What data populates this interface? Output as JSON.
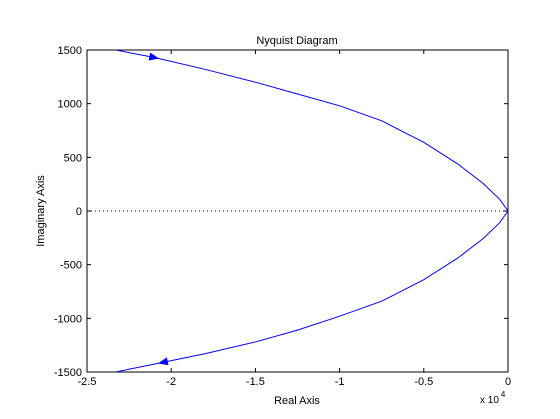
{
  "chart_data": {
    "type": "line",
    "title": "Nyquist Diagram",
    "xlabel": "Real Axis",
    "ylabel": "Imaginary Axis",
    "xlim": [
      -2.5,
      0
    ],
    "ylim": [
      -1500,
      1500
    ],
    "x_multiplier_base": "x 10",
    "x_multiplier_exponent": "4",
    "x_ticks": [
      -2.5,
      -2,
      -1.5,
      -1,
      -0.5,
      0
    ],
    "x_tick_labels": [
      "-2.5",
      "-2",
      "-1.5",
      "-1",
      "-0.5",
      "0"
    ],
    "y_ticks": [
      -1500,
      -1000,
      -500,
      0,
      500,
      1000,
      1500
    ],
    "y_tick_labels": [
      "-1500",
      "-1000",
      "-500",
      "0",
      "500",
      "1000",
      "1500"
    ],
    "grid": false,
    "zero_line": "dotted",
    "colors": {
      "curve": "#0000ff",
      "axes": "#000000",
      "zero_line": "#000000"
    },
    "series": [
      {
        "values_x": [
          -2.33,
          -2.1,
          -1.8,
          -1.5,
          -1.25,
          -1.0,
          -0.75,
          -0.5,
          -0.3,
          -0.15,
          -0.05,
          0.0
        ],
        "values_y": [
          1500,
          1430,
          1320,
          1200,
          1090,
          980,
          840,
          640,
          440,
          260,
          110,
          0
        ],
        "arrow_at": [
          -2.1,
          1430
        ]
      },
      {
        "values_x": [
          0.0,
          -0.05,
          -0.15,
          -0.3,
          -0.5,
          -0.75,
          -1.0,
          -1.25,
          -1.5,
          -1.8,
          -2.05,
          -2.33
        ],
        "values_y": [
          0,
          -110,
          -260,
          -440,
          -640,
          -840,
          -980,
          -1110,
          -1220,
          -1330,
          -1410,
          -1500
        ],
        "arrow_at": [
          -2.05,
          -1410
        ]
      }
    ]
  }
}
